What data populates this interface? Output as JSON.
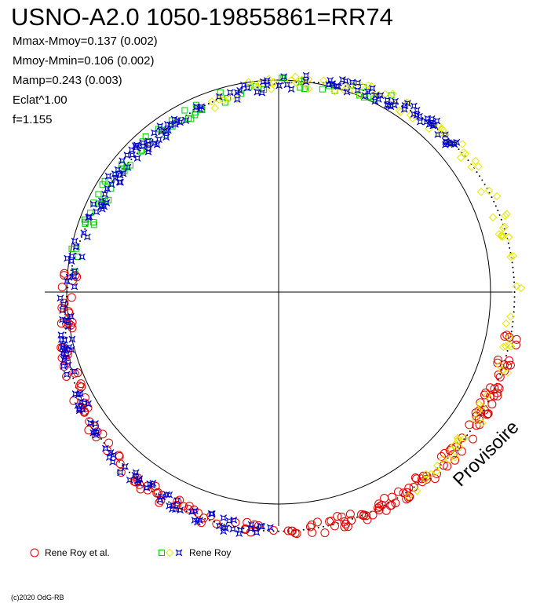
{
  "title": "USNO-A2.0 1050-19855861=RR74",
  "stats": [
    "Mmax-Mmoy=0.137 (0.002)",
    "Mmoy-Mmin=0.106 (0.002)",
    "Mamp=0.243 (0.003)",
    "Eclat^1.00",
    "f=1.155"
  ],
  "watermark": "Provisoire",
  "copyright": "(c)2020 OdG-RB",
  "legend": [
    {
      "label": "Rene Roy et al.",
      "symbols": [
        "circle"
      ],
      "colors": [
        "#e00000"
      ]
    },
    {
      "label": "Rene Roy",
      "symbols": [
        "square",
        "diamond",
        "star"
      ],
      "colors": [
        "#00cc00",
        "#e6e600",
        "#0000cc"
      ]
    }
  ],
  "chart_data": {
    "type": "scatter",
    "polar": true,
    "reference_circle": true,
    "axes": "crosshair",
    "amplitude": 0.243,
    "series": [
      {
        "name": "Rene Roy et al.",
        "marker": "circle",
        "color": "#e00000",
        "angle_range_deg": [
          175,
          350
        ]
      },
      {
        "name": "Rene Roy",
        "marker": "square",
        "color": "#00cc00",
        "angle_range_deg": [
          60,
          175
        ]
      },
      {
        "name": "Rene Roy",
        "marker": "diamond",
        "color": "#e6e600",
        "angle_range_deg": [
          -60,
          110
        ]
      },
      {
        "name": "Rene Roy",
        "marker": "star",
        "color": "#0000cc",
        "angle_range_deg": [
          40,
          270
        ]
      }
    ]
  }
}
